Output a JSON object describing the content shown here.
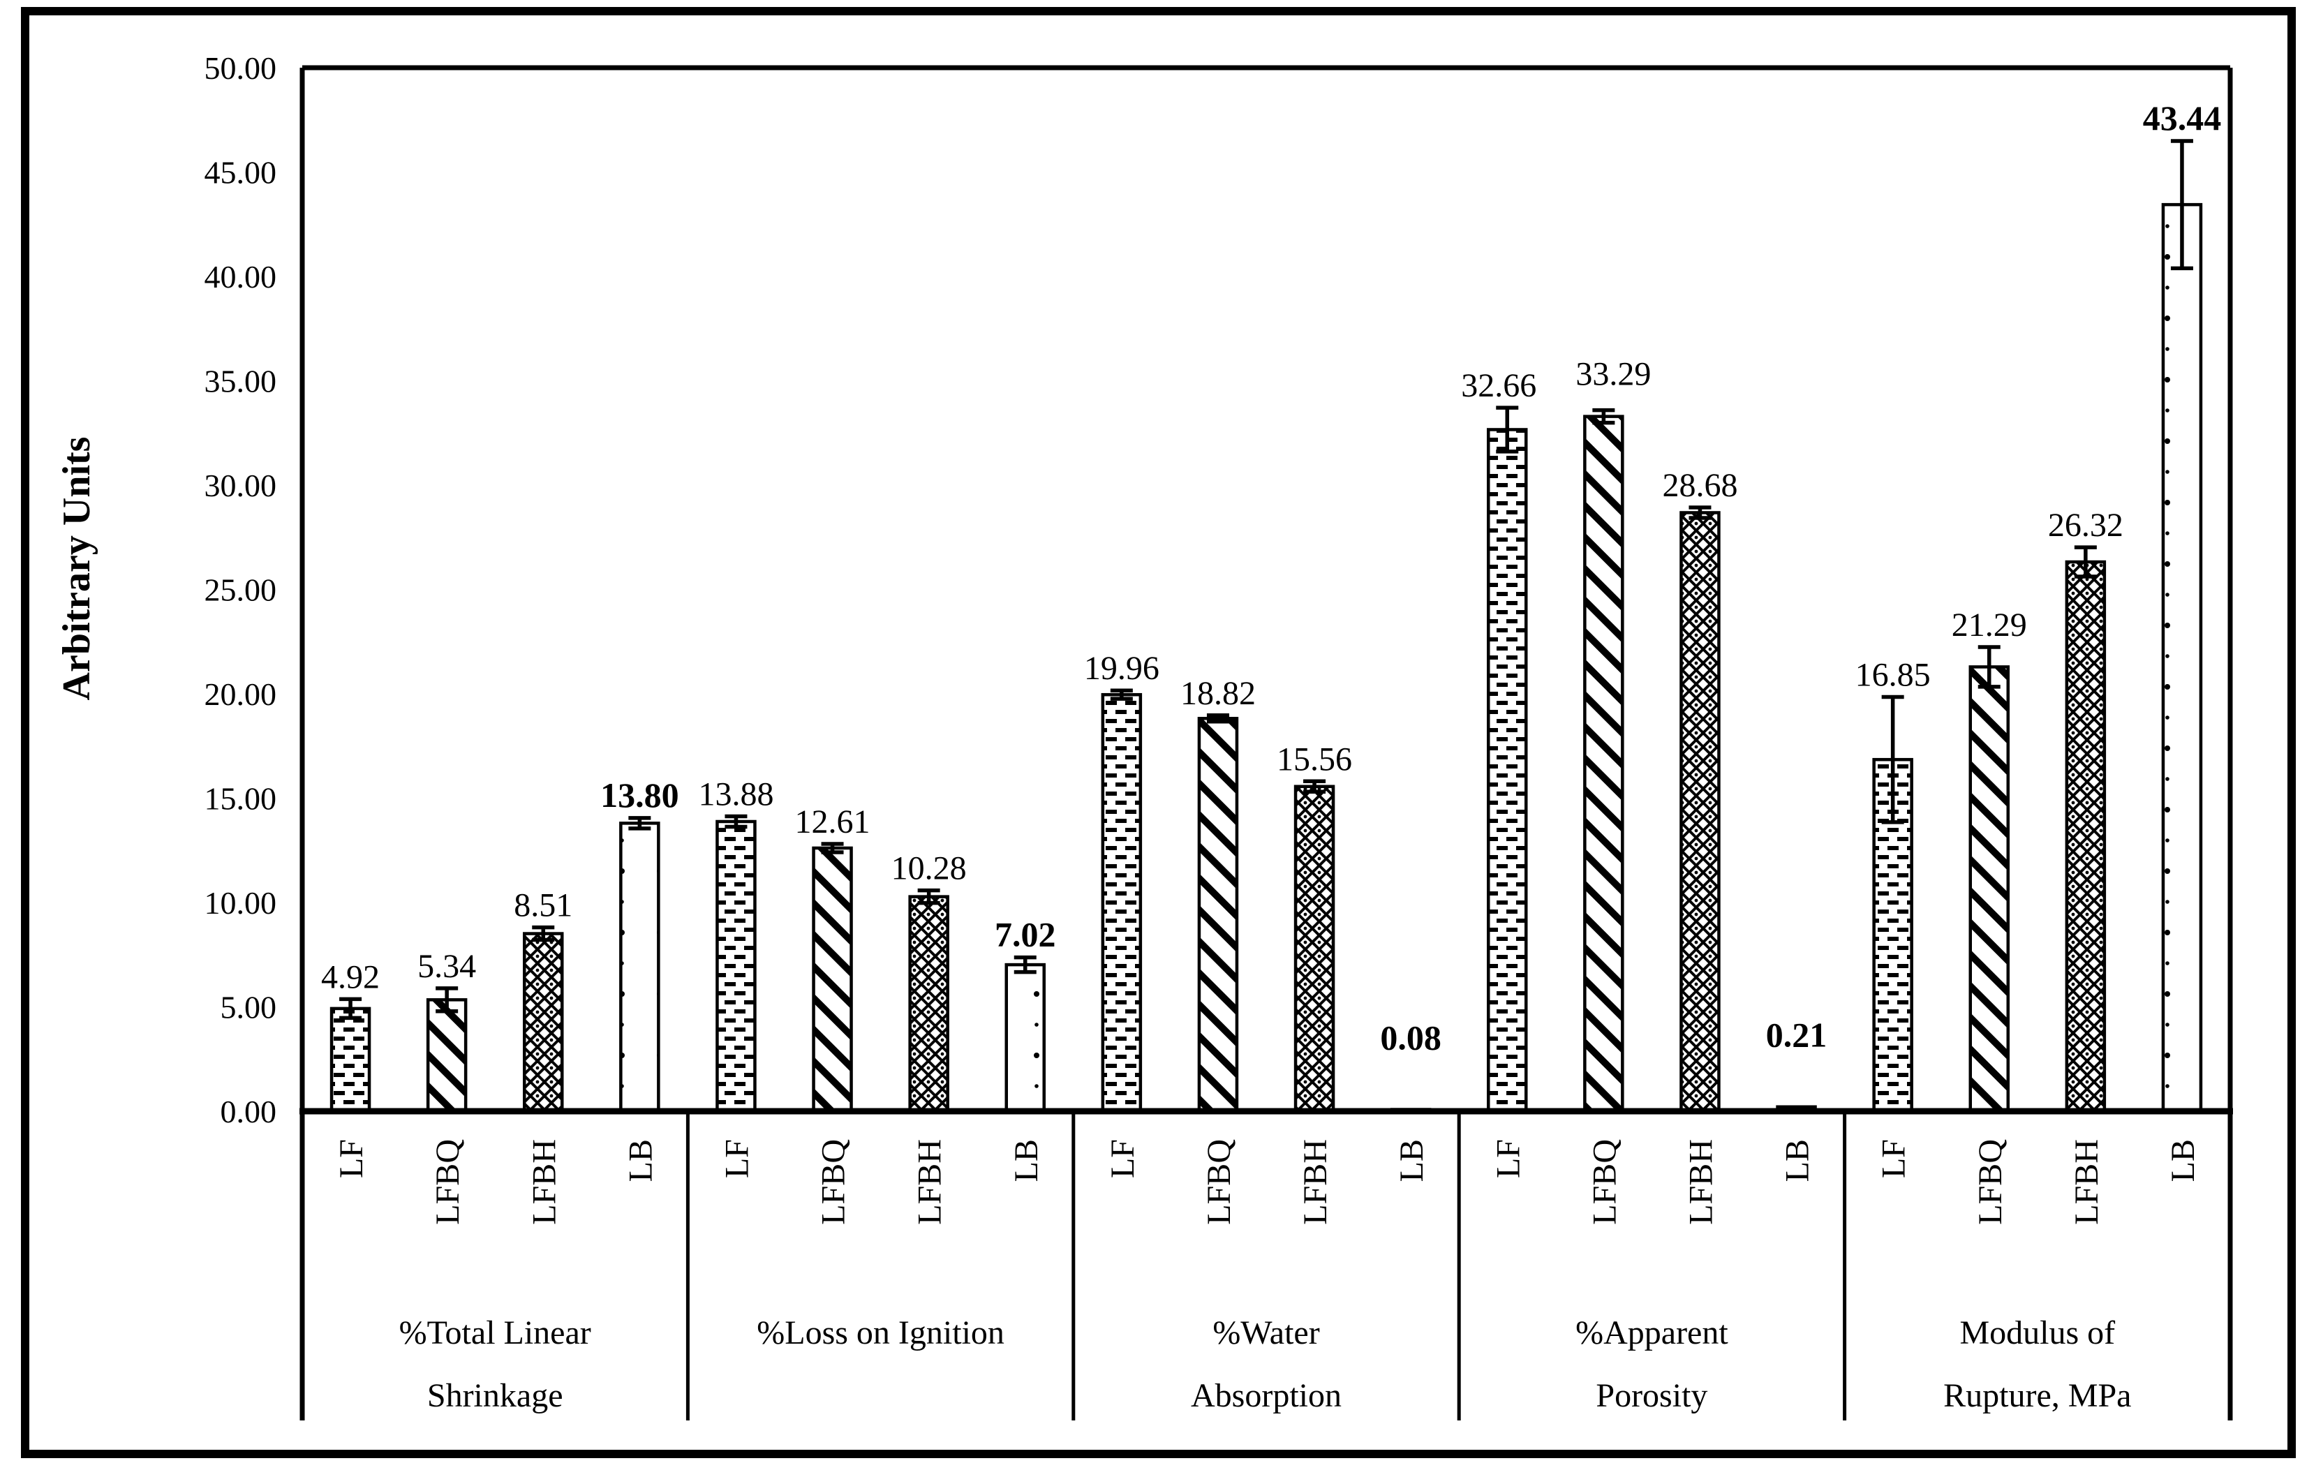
{
  "figure": {
    "background": "#ffffff",
    "ink_color": "#000000",
    "border": "thick black rectangle around entire figure"
  },
  "chart_data": {
    "type": "bar",
    "title": "",
    "ylabel": "Arbitrary Units",
    "xlabel": "",
    "ylim": [
      0,
      50
    ],
    "ytick_step": 5,
    "yticks": [
      "0.00",
      "5.00",
      "10.00",
      "15.00",
      "20.00",
      "25.00",
      "30.00",
      "35.00",
      "40.00",
      "45.00",
      "50.00"
    ],
    "grid": false,
    "legend": "none",
    "series": [
      "LF",
      "LFBQ",
      "LFBH",
      "LB"
    ],
    "series_patterns": [
      "horizontal-dashes",
      "diagonal-stripes",
      "diamond-crosshatch",
      "sparse-dots"
    ],
    "bold_value_label_series": "LB",
    "groups": [
      {
        "label_lines": [
          "%Total Linear",
          "Shrinkage"
        ],
        "values": [
          4.92,
          5.34,
          8.51,
          13.8
        ],
        "value_labels": [
          "4.92",
          "5.34",
          "8.51",
          "13.80"
        ],
        "errors": [
          0.45,
          0.55,
          0.3,
          0.25
        ]
      },
      {
        "label_lines": [
          "%Loss on Ignition"
        ],
        "values": [
          13.88,
          12.61,
          10.28,
          7.02
        ],
        "value_labels": [
          "13.88",
          "12.61",
          "10.28",
          "7.02"
        ],
        "errors": [
          0.25,
          0.2,
          0.3,
          0.35
        ]
      },
      {
        "label_lines": [
          "%Water",
          "Absorption"
        ],
        "values": [
          19.96,
          18.82,
          15.56,
          0.08
        ],
        "value_labels": [
          "19.96",
          "18.82",
          "15.56",
          "0.08"
        ],
        "errors": [
          0.2,
          0.15,
          0.25,
          0
        ],
        "label_dy": [
          0,
          0,
          0,
          -70
        ]
      },
      {
        "label_lines": [
          "%Apparent",
          "Porosity"
        ],
        "values": [
          32.66,
          33.29,
          28.68,
          0.21
        ],
        "value_labels": [
          "32.66",
          "33.29",
          "28.68",
          "0.21"
        ],
        "errors": [
          1.05,
          0.3,
          0.25,
          0
        ],
        "label_dx": [
          -12,
          14,
          0,
          0
        ],
        "label_dy": [
          0,
          -20,
          0,
          -70
        ]
      },
      {
        "label_lines": [
          "Modulus of",
          "Rupture, MPa"
        ],
        "values": [
          16.85,
          21.29,
          26.32,
          43.44
        ],
        "value_labels": [
          "16.85",
          "21.29",
          "26.32",
          "43.44"
        ],
        "errors": [
          3.0,
          0.95,
          0.7,
          3.05
        ]
      }
    ]
  }
}
